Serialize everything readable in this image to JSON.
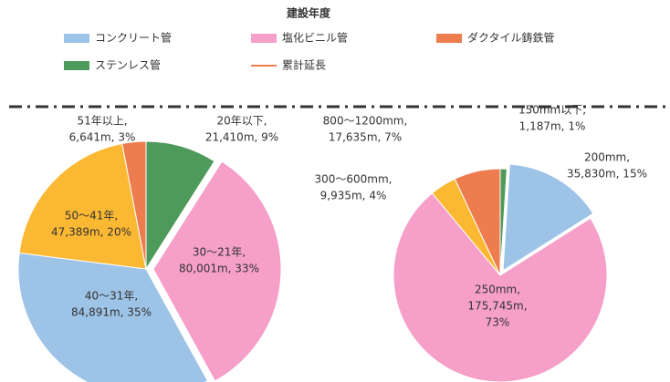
{
  "legend": {
    "title": "建設年度",
    "items": [
      {
        "name": "コンクリート管",
        "color": "#9dc3e6",
        "marker": "box"
      },
      {
        "name": "塩化ビニル管",
        "color": "#f59fc9",
        "marker": "box"
      },
      {
        "name": "ダクタイル鋳鉄管",
        "color": "#ed7d4e",
        "marker": "box"
      },
      {
        "name": "ステンレス管",
        "color": "#4e9a5a",
        "marker": "box"
      },
      {
        "name": "累計延長",
        "color": "#ed7d4e",
        "marker": "line"
      }
    ]
  },
  "chart_data": [
    {
      "type": "pie",
      "values": [
        9,
        33,
        35,
        20,
        3
      ],
      "value_labels": [
        [
          "20年以下,",
          "21,410m, 9%"
        ],
        [
          "30～21年,",
          "80,001m, 33%"
        ],
        [
          "40～31年,",
          "84,891m, 35%"
        ],
        [
          "50～41年,",
          "47,389m, 20%"
        ],
        [
          "51年以上,",
          "6,641m, 3%"
        ]
      ],
      "colors": [
        "#4e9a5a",
        "#f59fc9",
        "#9dc3e6",
        "#fbb933",
        "#ed7d4e"
      ]
    },
    {
      "type": "pie",
      "values": [
        1,
        15,
        73,
        4,
        7
      ],
      "value_labels": [
        [
          "150mm以下,",
          "1,187m, 1%"
        ],
        [
          "200mm,",
          "35,830m, 15%"
        ],
        [
          "250mm,",
          "175,745m,",
          "73%"
        ],
        [
          "300～600mm,",
          "9,935m, 4%"
        ],
        [
          "800～1200mm,",
          "17,635m, 7%"
        ]
      ],
      "colors": [
        "#4e9a5a",
        "#9dc3e6",
        "#f59fc9",
        "#fbb933",
        "#ed7d4e"
      ]
    }
  ]
}
